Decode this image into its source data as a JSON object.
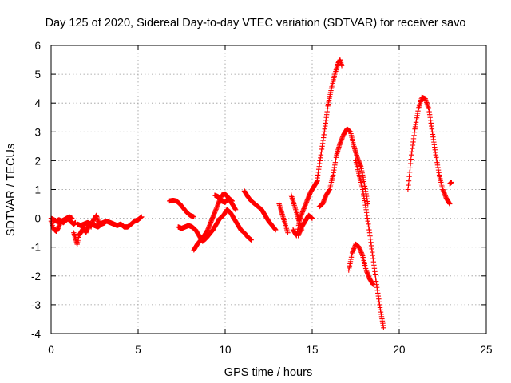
{
  "chart_data": {
    "type": "scatter",
    "title": "Day 125 of 2020, Sidereal Day-to-day VTEC variation (SDTVAR) for receiver savo",
    "xlabel": "GPS time / hours",
    "ylabel": "SDTVAR / TECUs",
    "xlim": [
      0,
      25
    ],
    "ylim": [
      -4,
      6
    ],
    "xticks": [
      0,
      5,
      10,
      15,
      20,
      25
    ],
    "yticks": [
      -4,
      -3,
      -2,
      -1,
      0,
      1,
      2,
      3,
      4,
      5,
      6
    ],
    "grid": true,
    "marker": "plus",
    "color": "#ff0000",
    "series": [
      {
        "x": [
          0.0,
          0.1,
          0.2,
          0.3,
          0.4,
          0.5,
          0.6,
          0.7,
          0.8,
          0.9,
          1.0,
          1.1,
          1.2,
          1.3,
          1.4
        ],
        "y": [
          -0.1,
          -0.3,
          -0.4,
          -0.45,
          -0.35,
          -0.2,
          -0.1,
          -0.15,
          -0.1,
          -0.05,
          0.0,
          -0.1,
          -0.15,
          -0.2,
          -0.15
        ]
      },
      {
        "x": [
          0.0,
          0.15,
          0.3,
          0.45,
          0.6,
          0.75,
          0.9,
          1.05,
          1.2
        ],
        "y": [
          0.0,
          -0.05,
          -0.1,
          -0.05,
          -0.1,
          -0.05,
          0.0,
          0.05,
          0.0
        ]
      },
      {
        "x": [
          1.3,
          1.4,
          1.5,
          1.6,
          1.7,
          1.8,
          1.9,
          2.0,
          2.1,
          2.2,
          2.3,
          2.4,
          2.5,
          2.6,
          2.7,
          2.8
        ],
        "y": [
          -0.5,
          -0.7,
          -0.9,
          -0.6,
          -0.5,
          -0.4,
          -0.3,
          -0.5,
          -0.35,
          -0.2,
          -0.3,
          -0.1,
          0.0,
          0.1,
          -0.1,
          -0.2
        ]
      },
      {
        "x": [
          1.5,
          1.7,
          1.9,
          2.1,
          2.3,
          2.5,
          2.7,
          2.9,
          3.1
        ],
        "y": [
          -0.2,
          -0.25,
          -0.2,
          -0.15,
          -0.2,
          -0.25,
          -0.3,
          -0.2,
          -0.15
        ]
      },
      {
        "x": [
          2.8,
          3.0,
          3.2,
          3.4,
          3.6,
          3.8,
          4.0,
          4.2,
          4.4,
          4.6,
          4.8,
          5.0,
          5.2
        ],
        "y": [
          -0.2,
          -0.15,
          -0.1,
          -0.15,
          -0.2,
          -0.25,
          -0.2,
          -0.3,
          -0.3,
          -0.2,
          -0.1,
          -0.05,
          0.05
        ]
      },
      {
        "x": [
          6.8,
          7.0,
          7.2,
          7.4,
          7.6,
          7.8,
          8.0,
          8.2
        ],
        "y": [
          0.6,
          0.62,
          0.6,
          0.5,
          0.35,
          0.2,
          0.1,
          0.05
        ]
      },
      {
        "x": [
          7.3,
          7.5,
          7.7,
          7.9,
          8.1,
          8.3,
          8.5,
          8.7,
          8.9,
          9.1,
          9.3,
          9.5,
          9.7,
          9.9,
          10.1,
          10.3,
          10.5,
          10.7,
          10.9,
          11.1,
          11.3,
          11.5
        ],
        "y": [
          -0.3,
          -0.35,
          -0.3,
          -0.25,
          -0.3,
          -0.4,
          -0.6,
          -0.8,
          -0.7,
          -0.55,
          -0.4,
          -0.2,
          0.0,
          0.1,
          0.3,
          0.2,
          0.0,
          -0.2,
          -0.4,
          -0.5,
          -0.65,
          -0.75
        ]
      },
      {
        "x": [
          8.2,
          8.4,
          8.6,
          8.8,
          9.0,
          9.2,
          9.4,
          9.6,
          9.8,
          10.0,
          10.2,
          10.4,
          10.6
        ],
        "y": [
          -1.1,
          -0.9,
          -0.75,
          -0.6,
          -0.4,
          -0.1,
          0.2,
          0.5,
          0.8,
          0.85,
          0.7,
          0.5,
          0.3
        ]
      },
      {
        "x": [
          9.4,
          9.6,
          9.8,
          10.0,
          10.2,
          10.4
        ],
        "y": [
          0.8,
          0.75,
          0.6,
          0.55,
          0.7,
          0.6
        ]
      },
      {
        "x": [
          11.1,
          11.3,
          11.5,
          11.7,
          11.9,
          12.1,
          12.3,
          12.5,
          12.7,
          12.9
        ],
        "y": [
          0.95,
          0.75,
          0.6,
          0.5,
          0.4,
          0.3,
          0.1,
          -0.1,
          -0.25,
          -0.4
        ]
      },
      {
        "x": [
          13.1,
          13.2,
          13.3,
          13.4,
          13.6
        ],
        "y": [
          0.5,
          0.3,
          0.1,
          -0.1,
          -0.5
        ]
      },
      {
        "x": [
          13.8,
          13.9,
          14.0,
          14.1,
          14.2,
          14.3,
          14.4
        ],
        "y": [
          0.8,
          0.6,
          0.4,
          0.2,
          0.0,
          -0.2,
          -0.4
        ]
      },
      {
        "x": [
          13.9,
          14.0,
          14.1,
          14.2,
          14.3,
          14.5,
          14.7,
          14.9,
          15.1,
          15.3
        ],
        "y": [
          -0.4,
          -0.5,
          -0.6,
          -0.3,
          0.0,
          0.3,
          0.6,
          0.9,
          1.1,
          1.3
        ]
      },
      {
        "x": [
          14.2,
          14.4,
          14.6,
          14.8,
          15.0
        ],
        "y": [
          -0.6,
          -0.3,
          -0.1,
          0.1,
          0.0
        ]
      },
      {
        "x": [
          15.3,
          15.5,
          15.7,
          15.9,
          16.1,
          16.3,
          16.5,
          16.6,
          16.7
        ],
        "y": [
          1.4,
          2.2,
          3.0,
          3.9,
          4.5,
          5.0,
          5.4,
          5.5,
          5.3
        ]
      },
      {
        "x": [
          15.4,
          15.6,
          15.8,
          16.0,
          16.2,
          16.4,
          16.6,
          16.8,
          17.0,
          17.2,
          17.4,
          17.6,
          17.8,
          18.0,
          18.2
        ],
        "y": [
          0.4,
          0.5,
          0.8,
          1.0,
          1.5,
          2.2,
          2.6,
          2.9,
          3.1,
          3.0,
          2.5,
          2.1,
          1.8,
          1.2,
          0.5
        ]
      },
      {
        "x": [
          17.5,
          17.7,
          17.9,
          18.1,
          18.3,
          18.5,
          18.7,
          18.9,
          19.1
        ],
        "y": [
          2.0,
          1.5,
          1.0,
          0.3,
          -0.5,
          -1.4,
          -2.3,
          -3.1,
          -3.8
        ]
      },
      {
        "x": [
          17.1,
          17.3,
          17.5,
          17.7,
          17.9,
          18.1,
          18.3,
          18.5
        ],
        "y": [
          -1.8,
          -1.2,
          -0.9,
          -1.0,
          -1.3,
          -1.8,
          -2.1,
          -2.3
        ]
      },
      {
        "x": [
          20.5,
          20.7,
          20.9,
          21.1,
          21.3,
          21.5,
          21.7,
          21.9,
          22.1,
          22.3,
          22.5,
          22.7,
          22.9
        ],
        "y": [
          1.0,
          2.2,
          3.1,
          3.8,
          4.2,
          4.15,
          3.8,
          3.0,
          2.2,
          1.5,
          1.0,
          0.7,
          0.5
        ]
      },
      {
        "x": [
          22.9,
          23.0
        ],
        "y": [
          1.2,
          1.25
        ]
      }
    ]
  }
}
